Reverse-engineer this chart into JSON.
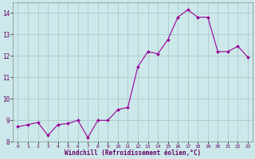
{
  "x": [
    0,
    1,
    2,
    3,
    4,
    5,
    6,
    7,
    8,
    9,
    10,
    11,
    12,
    13,
    14,
    15,
    16,
    17,
    18,
    19,
    20,
    21,
    22,
    23
  ],
  "y": [
    8.7,
    8.8,
    8.9,
    8.3,
    8.8,
    8.85,
    9.0,
    8.2,
    9.0,
    9.0,
    9.5,
    9.6,
    11.5,
    12.2,
    12.1,
    12.75,
    13.8,
    14.15,
    13.8,
    13.8,
    12.2,
    12.2,
    12.45,
    11.95
  ],
  "line_color": "#990099",
  "marker_color": "#990099",
  "bg_color": "#cce8ea",
  "grid_color": "#aacccc",
  "xlabel": "Windchill (Refroidissement éolien,°C)",
  "xlim": [
    -0.5,
    23.5
  ],
  "ylim": [
    8.0,
    14.5
  ],
  "yticks": [
    8,
    9,
    10,
    11,
    12,
    13,
    14
  ],
  "xticks": [
    0,
    1,
    2,
    3,
    4,
    5,
    6,
    7,
    8,
    9,
    10,
    11,
    12,
    13,
    14,
    15,
    16,
    17,
    18,
    19,
    20,
    21,
    22,
    23
  ],
  "xtick_labels": [
    "0",
    "1",
    "2",
    "3",
    "4",
    "5",
    "6",
    "7",
    "8",
    "9",
    "10",
    "11",
    "12",
    "13",
    "14",
    "15",
    "16",
    "17",
    "18",
    "19",
    "20",
    "21",
    "22",
    "23"
  ]
}
